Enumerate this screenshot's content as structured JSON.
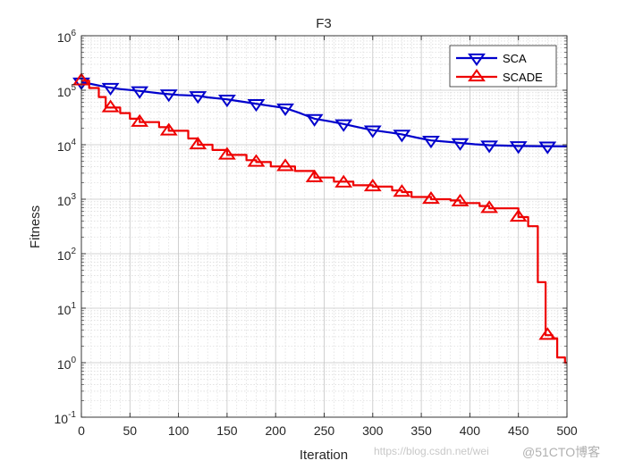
{
  "chart_data": {
    "type": "line",
    "title": "F3",
    "xlabel": "Iteration",
    "ylabel": "Fitness",
    "xlim": [
      0,
      500
    ],
    "ylim_log10": [
      -1,
      6
    ],
    "yscale": "log",
    "x_ticks": [
      "0",
      "50",
      "100",
      "150",
      "200",
      "250",
      "300",
      "350",
      "400",
      "450",
      "500"
    ],
    "y_ticks": [
      {
        "base": "10",
        "exp": "-1"
      },
      {
        "base": "10",
        "exp": "0"
      },
      {
        "base": "10",
        "exp": "1"
      },
      {
        "base": "10",
        "exp": "2"
      },
      {
        "base": "10",
        "exp": "3"
      },
      {
        "base": "10",
        "exp": "4"
      },
      {
        "base": "10",
        "exp": "5"
      },
      {
        "base": "10",
        "exp": "6"
      }
    ],
    "grid": true,
    "legend_position": "top-right",
    "series": [
      {
        "name": "SCA",
        "color": "#0000cc",
        "marker": "triangle-down",
        "points": [
          [
            0,
            140000
          ],
          [
            10,
            130000
          ],
          [
            25,
            115000
          ],
          [
            40,
            105000
          ],
          [
            60,
            97000
          ],
          [
            80,
            88000
          ],
          [
            100,
            82000
          ],
          [
            120,
            79000
          ],
          [
            130,
            74000
          ],
          [
            150,
            68000
          ],
          [
            170,
            60000
          ],
          [
            190,
            53000
          ],
          [
            210,
            47000
          ],
          [
            225,
            38000
          ],
          [
            240,
            30000
          ],
          [
            255,
            27000
          ],
          [
            270,
            24000
          ],
          [
            290,
            20000
          ],
          [
            300,
            18500
          ],
          [
            320,
            16500
          ],
          [
            330,
            15500
          ],
          [
            345,
            13500
          ],
          [
            360,
            12000
          ],
          [
            380,
            11200
          ],
          [
            390,
            10800
          ],
          [
            405,
            10200
          ],
          [
            420,
            9800
          ],
          [
            440,
            9600
          ],
          [
            450,
            9500
          ],
          [
            470,
            9400
          ],
          [
            500,
            9300
          ]
        ],
        "markers_x": [
          0,
          30,
          60,
          90,
          120,
          150,
          180,
          210,
          240,
          270,
          300,
          330,
          360,
          390,
          420,
          450,
          480
        ]
      },
      {
        "name": "SCADE",
        "color": "#ee0000",
        "marker": "triangle-up",
        "points": [
          [
            0,
            150000
          ],
          [
            8,
            150000
          ],
          [
            8,
            110000
          ],
          [
            18,
            110000
          ],
          [
            18,
            75000
          ],
          [
            25,
            75000
          ],
          [
            25,
            48000
          ],
          [
            40,
            48000
          ],
          [
            40,
            38000
          ],
          [
            50,
            38000
          ],
          [
            50,
            30000
          ],
          [
            60,
            30000
          ],
          [
            60,
            26000
          ],
          [
            80,
            26000
          ],
          [
            80,
            21000
          ],
          [
            90,
            21000
          ],
          [
            90,
            18000
          ],
          [
            110,
            18000
          ],
          [
            110,
            13000
          ],
          [
            120,
            13000
          ],
          [
            120,
            10000
          ],
          [
            135,
            10000
          ],
          [
            135,
            8000
          ],
          [
            150,
            8000
          ],
          [
            150,
            6500
          ],
          [
            170,
            6500
          ],
          [
            170,
            5200
          ],
          [
            180,
            5200
          ],
          [
            180,
            4800
          ],
          [
            195,
            4800
          ],
          [
            195,
            4000
          ],
          [
            220,
            4000
          ],
          [
            220,
            3300
          ],
          [
            240,
            3300
          ],
          [
            240,
            2500
          ],
          [
            260,
            2500
          ],
          [
            260,
            2100
          ],
          [
            280,
            2100
          ],
          [
            280,
            1800
          ],
          [
            300,
            1800
          ],
          [
            300,
            1700
          ],
          [
            320,
            1700
          ],
          [
            320,
            1450
          ],
          [
            330,
            1450
          ],
          [
            330,
            1350
          ],
          [
            340,
            1350
          ],
          [
            340,
            1100
          ],
          [
            360,
            1100
          ],
          [
            360,
            1000
          ],
          [
            380,
            1000
          ],
          [
            380,
            950
          ],
          [
            390,
            950
          ],
          [
            390,
            850
          ],
          [
            410,
            850
          ],
          [
            410,
            750
          ],
          [
            420,
            750
          ],
          [
            420,
            680
          ],
          [
            450,
            680
          ],
          [
            450,
            470
          ],
          [
            460,
            470
          ],
          [
            460,
            320
          ],
          [
            470,
            320
          ],
          [
            470,
            30
          ],
          [
            478,
            30
          ],
          [
            478,
            3.2
          ],
          [
            485,
            3.2
          ],
          [
            485,
            2.8
          ],
          [
            490,
            2.8
          ],
          [
            490,
            1.25
          ],
          [
            498,
            1.25
          ],
          [
            498,
            1.0
          ],
          [
            500,
            1.0
          ]
        ],
        "markers": [
          [
            0,
            150000
          ],
          [
            30,
            48000
          ],
          [
            60,
            26000
          ],
          [
            90,
            18000
          ],
          [
            120,
            10000
          ],
          [
            150,
            6500
          ],
          [
            180,
            4800
          ],
          [
            210,
            4000
          ],
          [
            240,
            2500
          ],
          [
            270,
            2000
          ],
          [
            300,
            1700
          ],
          [
            330,
            1350
          ],
          [
            360,
            1000
          ],
          [
            390,
            900
          ],
          [
            420,
            680
          ],
          [
            450,
            470
          ],
          [
            480,
            3.2
          ]
        ]
      }
    ]
  },
  "watermark": {
    "url": "https://blog.csdn.net/wei",
    "badge": "@51CTO博客"
  }
}
